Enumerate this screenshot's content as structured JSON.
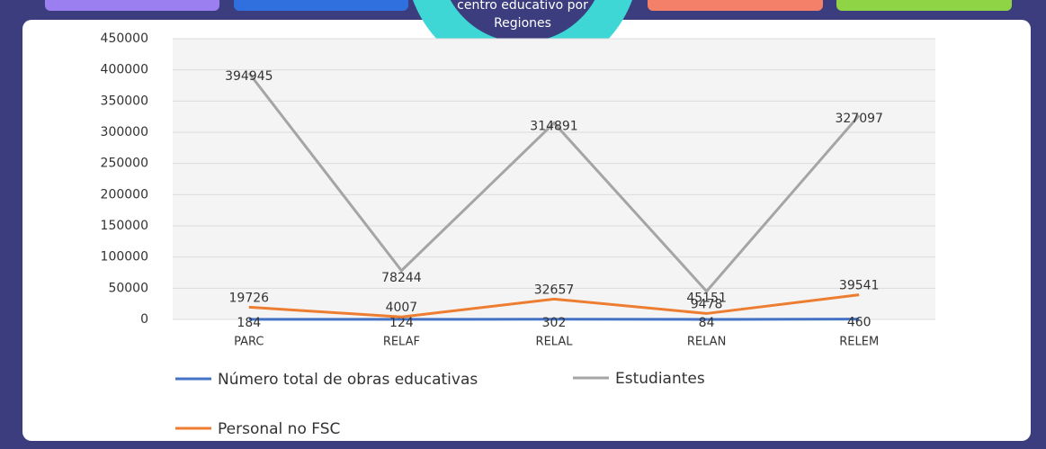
{
  "header": {
    "tab_label": [
      "centro educativo por",
      "Regiones"
    ]
  },
  "chart_data": {
    "type": "line",
    "categories": [
      "PARC",
      "RELAF",
      "RELAL",
      "RELAN",
      "RELEM"
    ],
    "series": [
      {
        "name": "Número total de obras educativas",
        "color": "#4472c4",
        "values": [
          184,
          124,
          302,
          84,
          460
        ]
      },
      {
        "name": "Estudiantes",
        "color": "#a5a5a5",
        "values": [
          394945,
          78244,
          314891,
          45151,
          327097
        ]
      },
      {
        "name": "Personal no FSC",
        "color": "#ed7d31",
        "values": [
          19726,
          4007,
          32657,
          9478,
          39541
        ]
      }
    ],
    "ylim": [
      0,
      450000
    ],
    "yticks": [
      0,
      50000,
      100000,
      150000,
      200000,
      250000,
      300000,
      350000,
      400000,
      450000
    ],
    "grid": true
  }
}
